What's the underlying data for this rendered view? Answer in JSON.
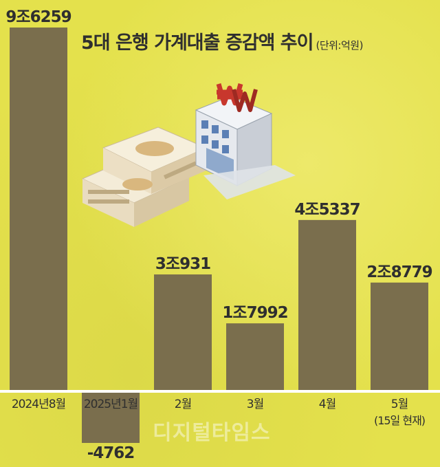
{
  "title": "5대 은행 가계대출 증감액 추이",
  "unit": "(단위:억원)",
  "watermark": "디지털타임스",
  "colors": {
    "bar": "#7a6e4d",
    "axis": "#ffffff",
    "text": "#2f2f2f",
    "background": "#e4e14c"
  },
  "chart_data": {
    "type": "bar",
    "categories": [
      "2024년8월",
      "2025년1월",
      "2월",
      "3월",
      "4월",
      "5월"
    ],
    "category_sublabels": [
      "",
      "",
      "",
      "",
      "",
      "(15일 현재)"
    ],
    "values": [
      96259,
      -4762,
      30931,
      17992,
      45337,
      28779
    ],
    "value_labels": [
      "9조6259",
      "-4762",
      "3조931",
      "1조7992",
      "4조5337",
      "2조8779"
    ],
    "title": "5대 은행 가계대출 증감액 추이",
    "ylabel": "(단위:억원)",
    "ylim": [
      -4762,
      96259
    ],
    "grid": false,
    "legend": "none"
  }
}
